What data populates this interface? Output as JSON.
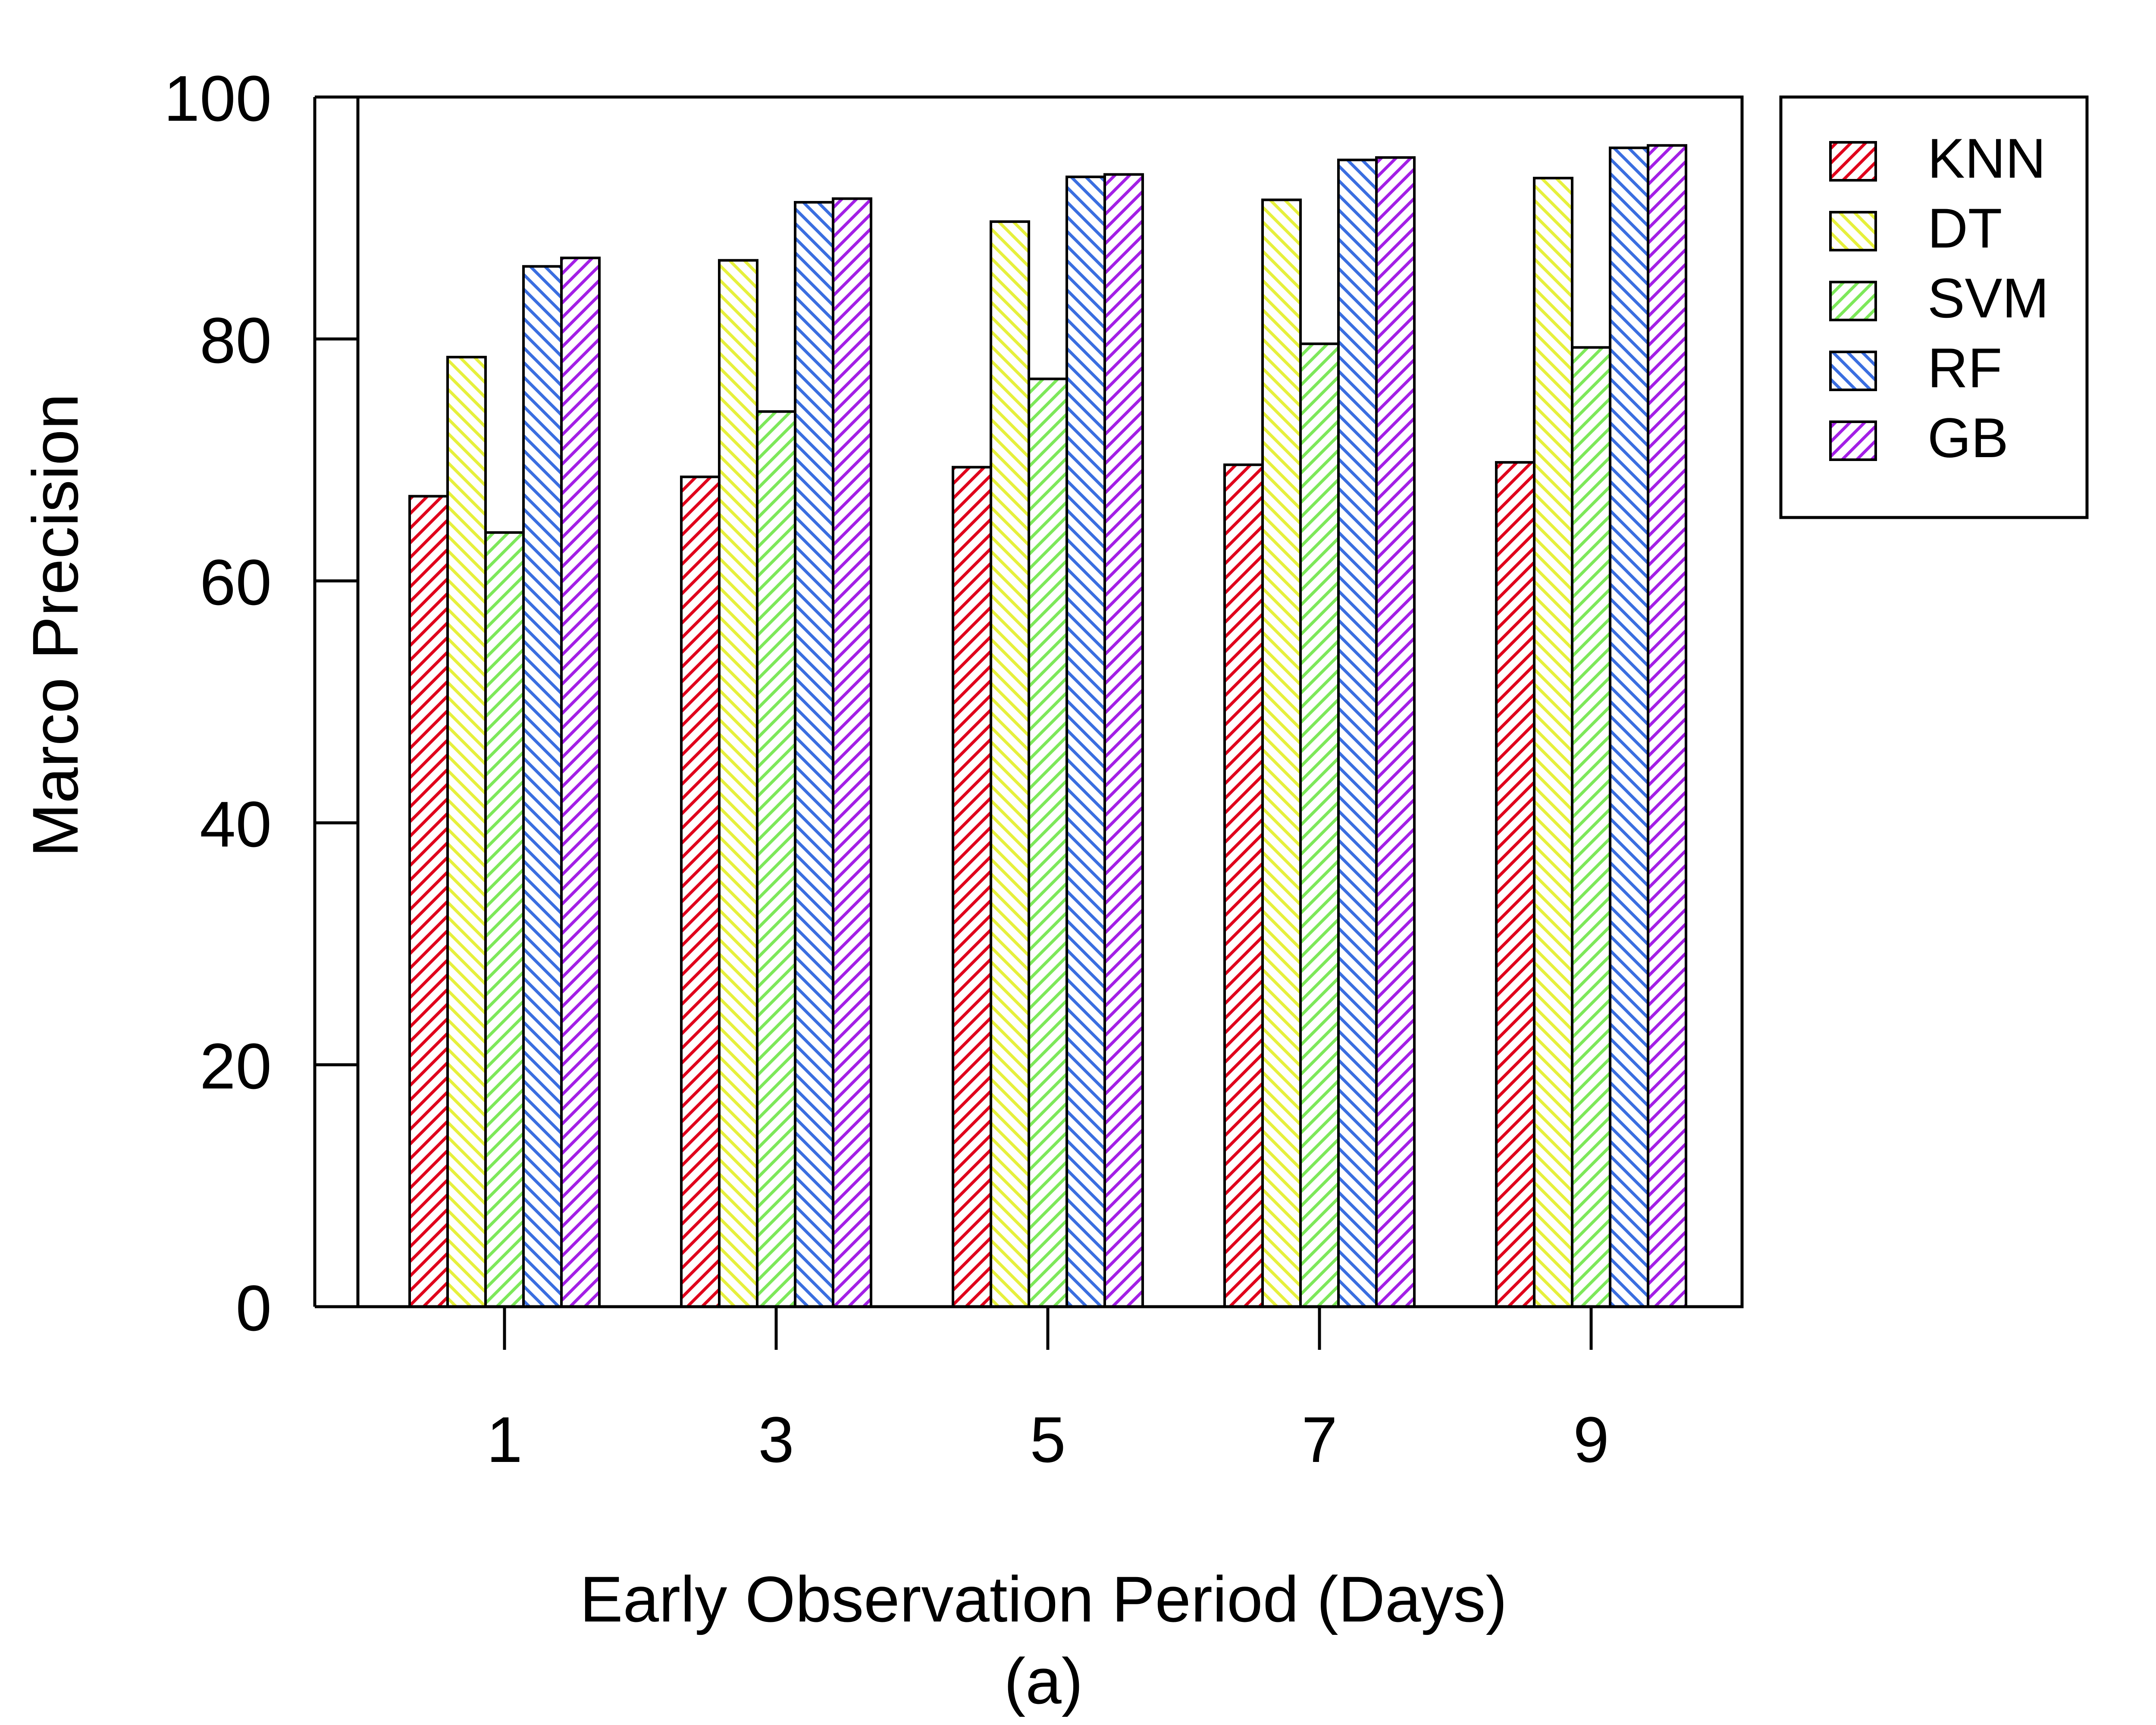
{
  "chart_data": {
    "type": "bar",
    "xlabel": "Early Observation Period (Days)",
    "ylabel": "Marco Precision",
    "caption": "(a)",
    "categories": [
      "1",
      "3",
      "5",
      "7",
      "9"
    ],
    "ylim": [
      0,
      100
    ],
    "yticks": [
      "0",
      "20",
      "40",
      "60",
      "80",
      "100"
    ],
    "grid": false,
    "legend_position": "top-right, outside plot",
    "bar_fill": "diagonal hatching",
    "series": [
      {
        "name": "KNN",
        "color": "#e0001b",
        "hatch": "forward",
        "values": [
          67.0,
          68.6,
          69.4,
          69.6,
          69.8
        ]
      },
      {
        "name": "DT",
        "color": "#e6f03c",
        "hatch": "backward",
        "values": [
          78.5,
          86.5,
          89.7,
          91.5,
          93.3
        ]
      },
      {
        "name": "SVM",
        "color": "#7de85a",
        "hatch": "forward",
        "values": [
          64.0,
          74.0,
          76.7,
          79.6,
          79.3
        ]
      },
      {
        "name": "RF",
        "color": "#3a6ee0",
        "hatch": "backward",
        "values": [
          86.0,
          91.3,
          93.4,
          94.8,
          95.8
        ]
      },
      {
        "name": "GB",
        "color": "#a31fe6",
        "hatch": "forward",
        "values": [
          86.7,
          91.6,
          93.6,
          95.0,
          96.0
        ]
      }
    ]
  }
}
